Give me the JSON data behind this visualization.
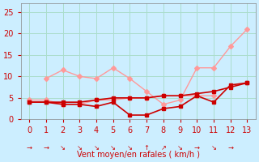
{
  "title": "",
  "xlabel": "Vent moyen/en rafales ( km/h )",
  "background_color": "#cceeff",
  "x": [
    0,
    1,
    2,
    3,
    4,
    5,
    6,
    7,
    8,
    9,
    10,
    11,
    12,
    13
  ],
  "line1": {
    "y": [
      9.5,
      11.5,
      10.0,
      9.5,
      12.0,
      9.5,
      6.5,
      3.5,
      4.5,
      12.0,
      12.0,
      17.0,
      21.0
    ],
    "color": "#ff9999",
    "lw": 1.0,
    "marker": "D",
    "ms": 3
  },
  "line2": {
    "y": [
      4.5,
      4.5,
      3.5,
      3.5,
      4.5,
      4.5,
      5.0,
      5.0,
      5.5,
      5.5,
      5.5,
      5.5,
      null,
      null
    ],
    "color": "#ff9999",
    "lw": 1.0,
    "marker": "D",
    "ms": 3
  },
  "line3": {
    "y": [
      4.0,
      4.0,
      3.5,
      3.5,
      3.0,
      4.0,
      1.0,
      1.0,
      2.5,
      3.0,
      5.5,
      4.0,
      8.0,
      8.5
    ],
    "color": "#cc0000",
    "lw": 1.2,
    "marker": "s",
    "ms": 3
  },
  "line4": {
    "y": [
      4.0,
      4.0,
      4.0,
      4.0,
      4.5,
      5.0,
      5.0,
      5.0,
      5.5,
      5.5,
      6.0,
      6.5,
      7.5,
      8.5
    ],
    "color": "#cc0000",
    "lw": 1.2,
    "marker": "s",
    "ms": 3
  },
  "wind_dirs": [
    "→",
    "→",
    "↘",
    "↘",
    "↘",
    "↘",
    "↘",
    "↑",
    "↗",
    "↘",
    "→",
    "↘",
    "→"
  ],
  "ylim": [
    0,
    27
  ],
  "yticks": [
    0,
    5,
    10,
    15,
    20,
    25
  ],
  "xlim": [
    -0.5,
    13.5
  ],
  "xticks": [
    0,
    1,
    2,
    3,
    4,
    5,
    6,
    7,
    8,
    9,
    10,
    11,
    12,
    13
  ],
  "grid_color": "#aaddcc",
  "tick_color": "#cc0000",
  "label_color": "#cc0000"
}
